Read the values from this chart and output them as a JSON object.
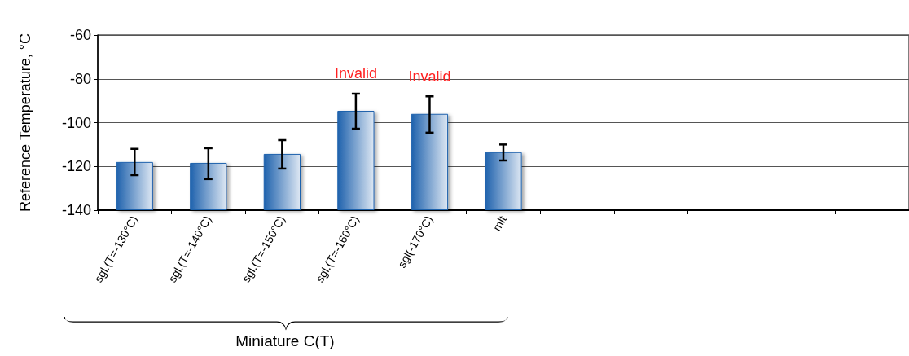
{
  "chart_data": {
    "type": "bar",
    "ylabel": "Reference Temperature, °C",
    "categories": [
      "sgl.(T=-130°C)",
      "sgl.(T=-140°C)",
      "sgl.(T=-150°C)",
      "sgl.(T=-160°C)",
      "sgl(-170°C)",
      "mlt",
      null,
      null,
      null,
      null,
      null
    ],
    "base": [
      -140,
      -140,
      -140,
      -140,
      -140,
      -140,
      null,
      null,
      null,
      null,
      null
    ],
    "values": [
      22,
      21.6,
      25.7,
      45.4,
      44,
      26.5,
      null,
      null,
      null,
      null,
      null
    ],
    "errors": [
      [
        -124,
        -112
      ],
      [
        -125.8,
        -111.7
      ],
      [
        -121,
        -108
      ],
      [
        -102.8,
        -86.8
      ],
      [
        -104.6,
        -88
      ],
      [
        -117.3,
        -110
      ],
      null,
      null,
      null,
      null,
      null
    ],
    "color": "#1f62ad",
    "ylim": [
      -140,
      -60
    ],
    "yticks": [
      -140,
      -120,
      -100,
      -80,
      -60
    ],
    "grid": "y",
    "annotations": [
      {
        "text": "Invalid",
        "x": "sgl.(T=-160°C)",
        "y": -94.6
      },
      {
        "text": "Invalid",
        "x": "sgl(-170°C)",
        "y": -96
      },
      "Miniature C(T)"
    ]
  }
}
